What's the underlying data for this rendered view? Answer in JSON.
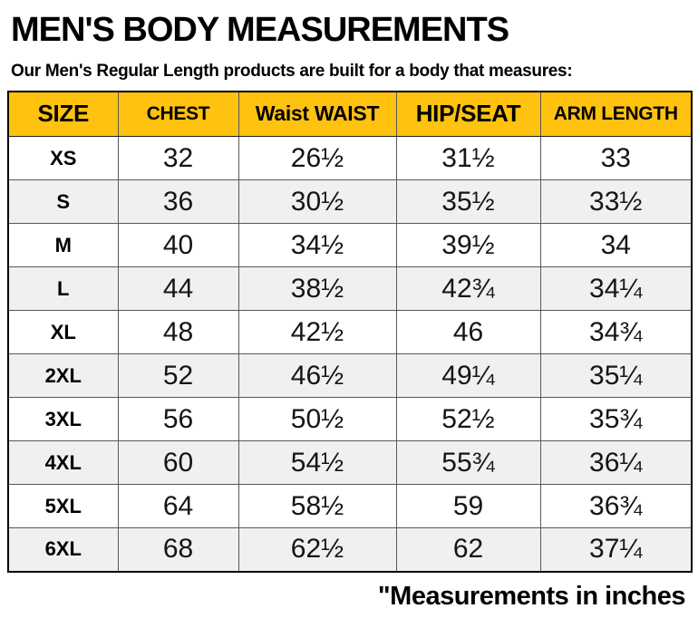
{
  "page": {
    "title": "MEN'S BODY MEASUREMENTS",
    "subtitle": "Our Men's Regular Length products are built for a body that measures:",
    "footnote": "\"Measurements in inches"
  },
  "colors": {
    "header_bg": "#FFC20E",
    "alt_row_bg": "#F0F0F0",
    "outer_border": "#000000",
    "inner_border": "#595959"
  },
  "chart_data": {
    "type": "table",
    "title": "MEN'S BODY MEASUREMENTS",
    "headers": [
      "SIZE",
      "CHEST",
      "Waist WAIST",
      "HIP/SEAT",
      "ARM LENGTH"
    ],
    "rows": [
      [
        "XS",
        "32",
        "26½",
        "31½",
        "33"
      ],
      [
        "S",
        "36",
        "30½",
        "35½",
        "33½"
      ],
      [
        "M",
        "40",
        "34½",
        "39½",
        "34"
      ],
      [
        "L",
        "44",
        "38½",
        "42¾",
        "34¼"
      ],
      [
        "XL",
        "48",
        "42½",
        "46",
        "34¾"
      ],
      [
        "2XL",
        "52",
        "46½",
        "49¼",
        "35¼"
      ],
      [
        "3XL",
        "56",
        "50½",
        "52½",
        "35¾"
      ],
      [
        "4XL",
        "60",
        "54½",
        "55¾",
        "36¼"
      ],
      [
        "5XL",
        "64",
        "58½",
        "59",
        "36¾"
      ],
      [
        "6XL",
        "68",
        "62½",
        "62",
        "37¼"
      ]
    ],
    "units": "inches",
    "legend_position": "none",
    "grid": true
  }
}
